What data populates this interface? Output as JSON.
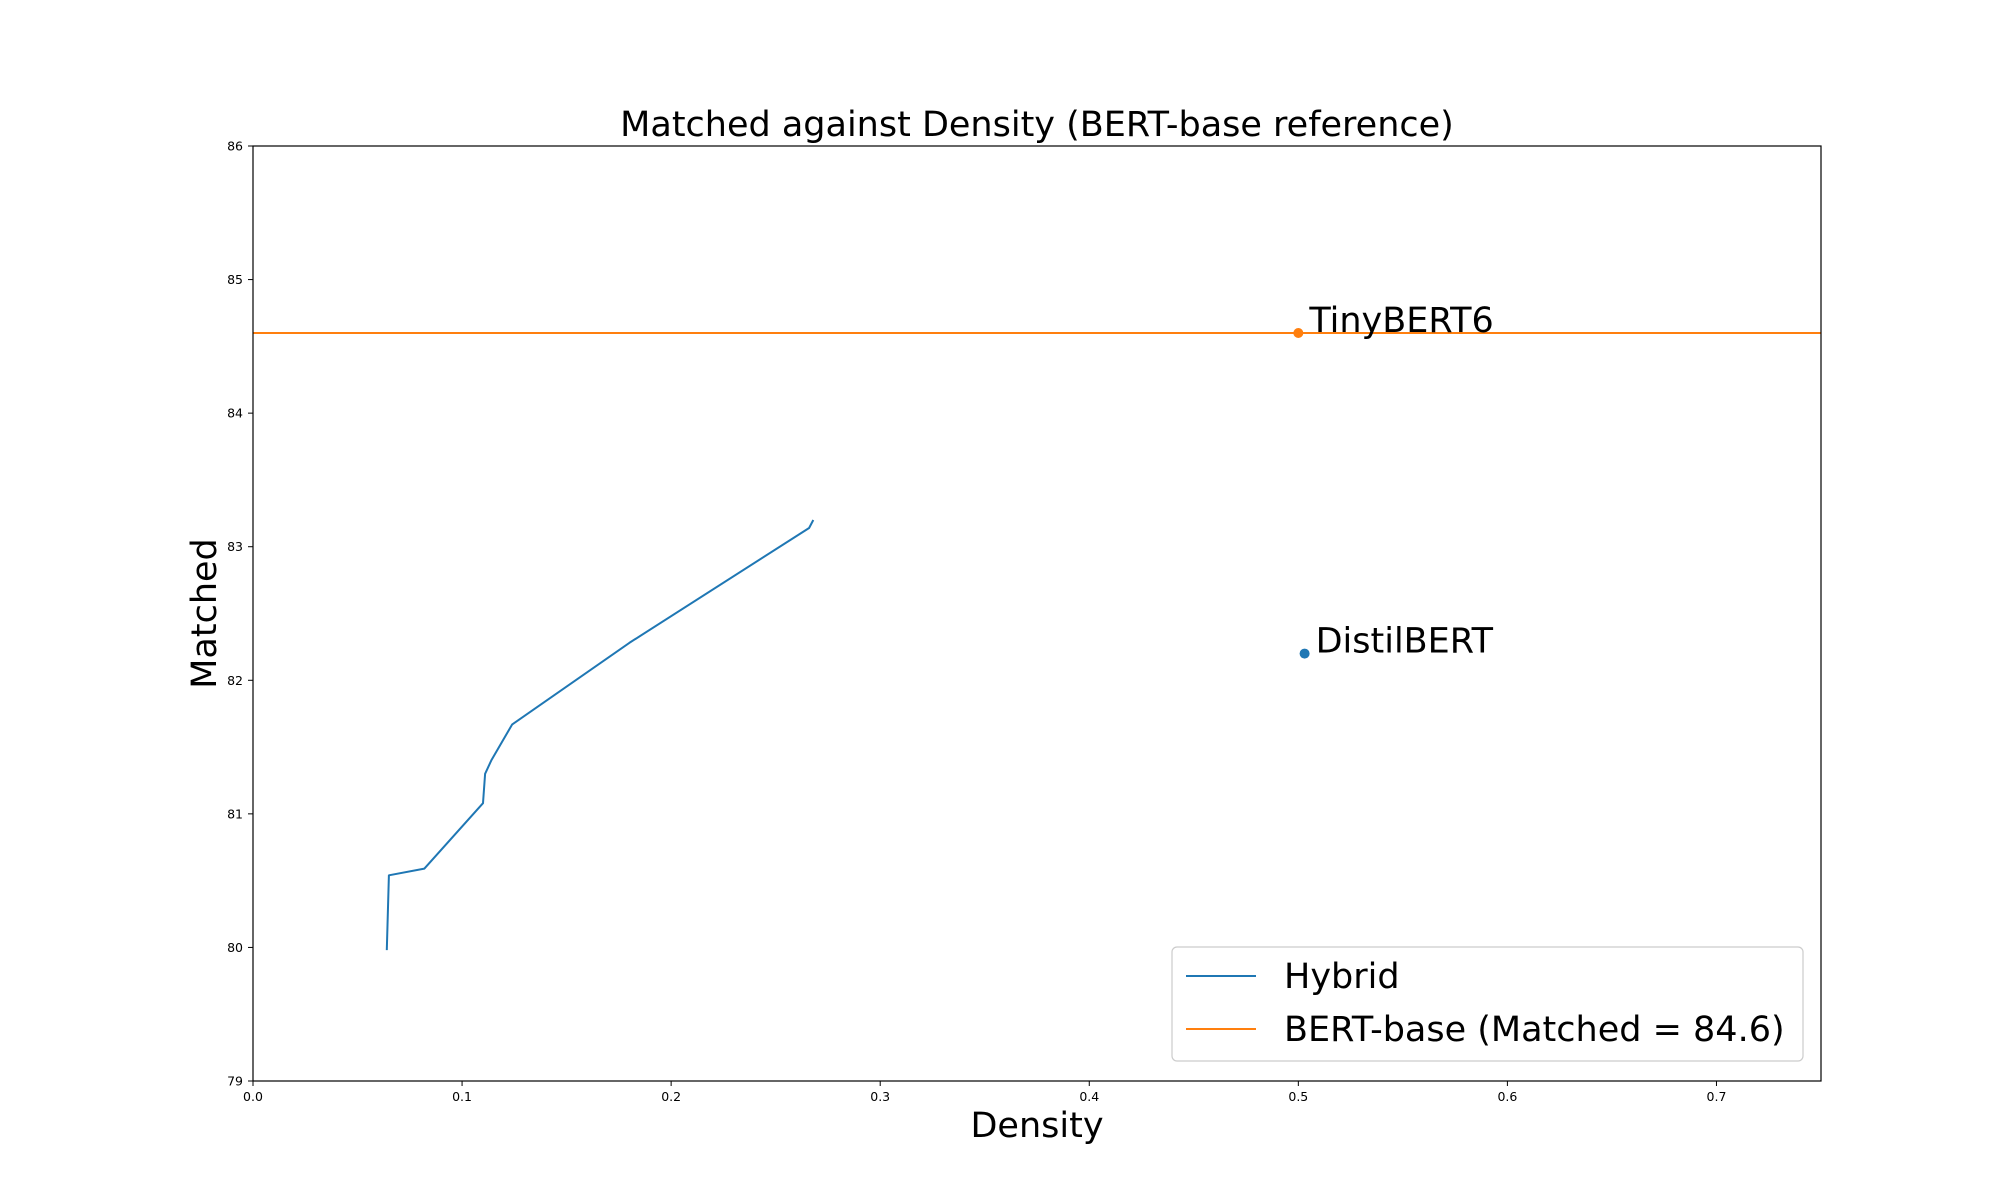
{
  "chart_data": {
    "type": "line",
    "title": "Matched against Density (BERT-base reference)",
    "xlabel": "Density",
    "ylabel": "Matched",
    "xlim": [
      0.0,
      0.75
    ],
    "ylim": [
      79,
      86
    ],
    "xticks": [
      "0.0",
      "0.1",
      "0.2",
      "0.3",
      "0.4",
      "0.5",
      "0.6",
      "0.7"
    ],
    "yticks": [
      "79",
      "80",
      "81",
      "82",
      "83",
      "84",
      "85",
      "86"
    ],
    "grid": false,
    "legend_position": "lower-right",
    "series": [
      {
        "name": "Hybrid",
        "color": "#1f77b4",
        "style": "line",
        "x": [
          0.064,
          0.065,
          0.082,
          0.11,
          0.111,
          0.114,
          0.124,
          0.18,
          0.266,
          0.268
        ],
        "y": [
          79.98,
          80.54,
          80.59,
          81.08,
          81.3,
          81.4,
          81.67,
          82.28,
          83.14,
          83.2
        ]
      }
    ],
    "reference_lines": [
      {
        "name": "BERT-base (Matched = 84.6)",
        "color": "#ff7f0e",
        "orientation": "horizontal",
        "y": 84.6
      }
    ],
    "points": [
      {
        "label": "TinyBERT6",
        "x": 0.5,
        "y": 84.6,
        "color": "#ff7f0e"
      },
      {
        "label": "DistilBERT",
        "x": 0.503,
        "y": 82.2,
        "color": "#1f77b4"
      }
    ]
  }
}
